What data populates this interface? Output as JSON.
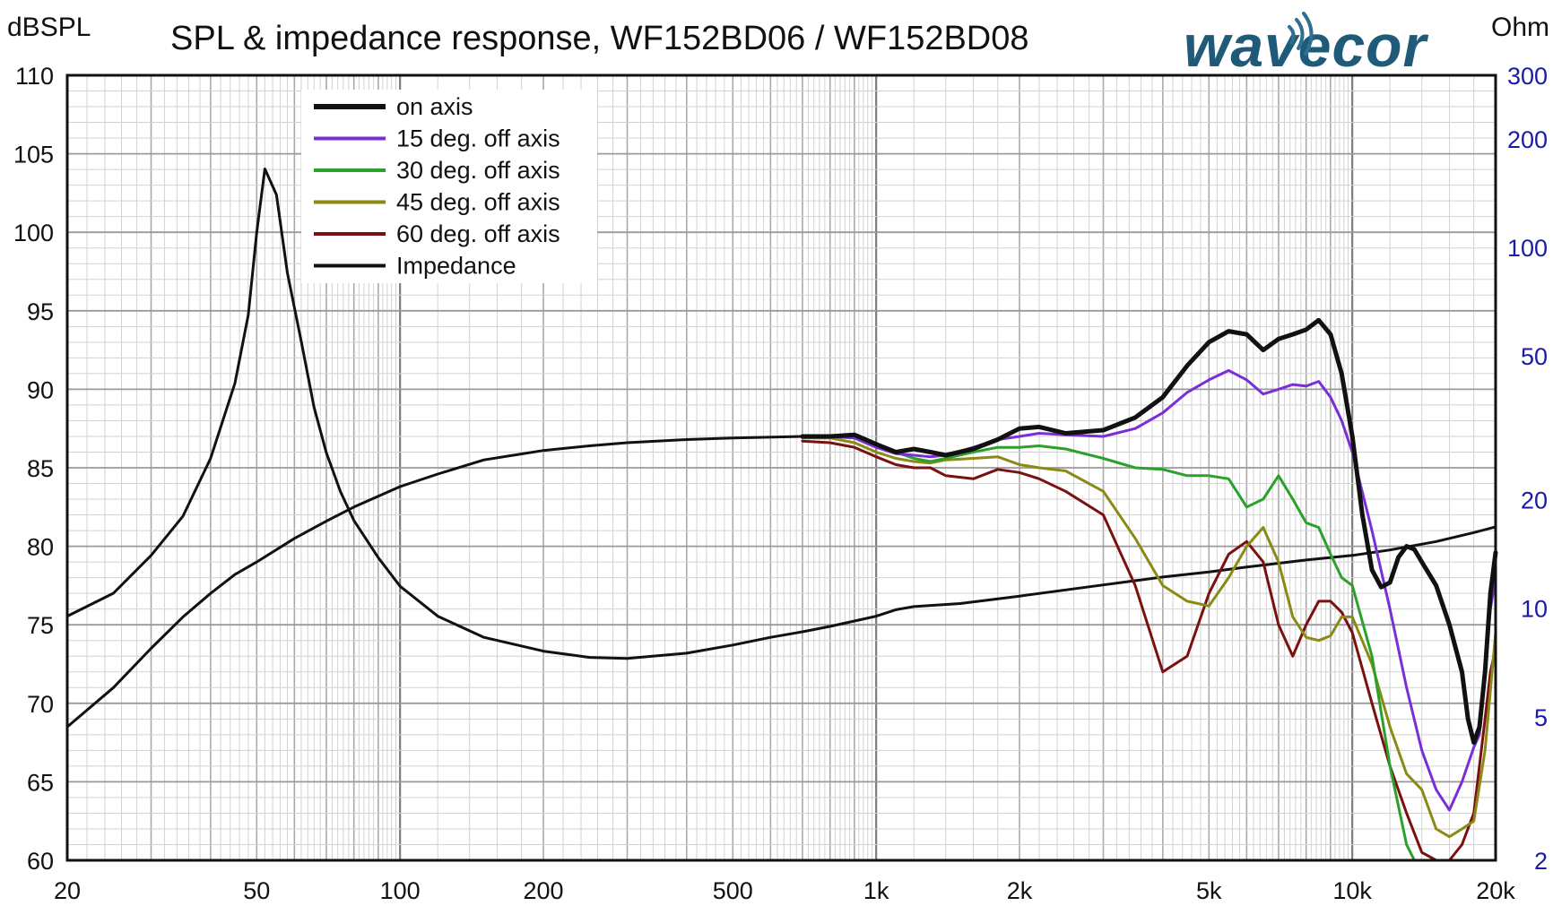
{
  "header": {
    "title": "SPL & impedance response, WF152BD06 / WF152BD08",
    "left_unit": "dBSPL",
    "right_unit": "Ohm",
    "logo": "wavecor"
  },
  "chart_data": {
    "type": "line",
    "title": "SPL & impedance response, WF152BD06 / WF152BD08",
    "xscale": "log",
    "xlim": [
      20,
      20000
    ],
    "x_ticks": [
      {
        "v": 20,
        "label": "20"
      },
      {
        "v": 50,
        "label": "50"
      },
      {
        "v": 100,
        "label": "100"
      },
      {
        "v": 200,
        "label": "200"
      },
      {
        "v": 500,
        "label": "500"
      },
      {
        "v": 1000,
        "label": "1k"
      },
      {
        "v": 2000,
        "label": "2k"
      },
      {
        "v": 5000,
        "label": "5k"
      },
      {
        "v": 10000,
        "label": "10k"
      },
      {
        "v": 20000,
        "label": "20k"
      }
    ],
    "ylabel": "dBSPL",
    "ylim": [
      60,
      110
    ],
    "y_ticks": [
      60,
      65,
      70,
      75,
      80,
      85,
      90,
      95,
      100,
      105,
      110
    ],
    "y2label": "Ohm",
    "y2scale": "log",
    "y2lim": [
      2,
      300
    ],
    "y2_ticks": [
      2,
      5,
      10,
      20,
      50,
      100,
      200,
      300
    ],
    "grid": true,
    "legend_position": "top-left",
    "series": [
      {
        "name": "on axis",
        "color": "#111111",
        "width": 5,
        "axis": "left",
        "points": [
          [
            700,
            87
          ],
          [
            800,
            87
          ],
          [
            900,
            87.1
          ],
          [
            1000,
            86.5
          ],
          [
            1100,
            86
          ],
          [
            1200,
            86.2
          ],
          [
            1300,
            86
          ],
          [
            1400,
            85.8
          ],
          [
            1600,
            86.2
          ],
          [
            1800,
            86.8
          ],
          [
            2000,
            87.5
          ],
          [
            2200,
            87.6
          ],
          [
            2500,
            87.2
          ],
          [
            3000,
            87.4
          ],
          [
            3500,
            88.2
          ],
          [
            4000,
            89.5
          ],
          [
            4500,
            91.5
          ],
          [
            5000,
            93
          ],
          [
            5500,
            93.7
          ],
          [
            6000,
            93.5
          ],
          [
            6500,
            92.5
          ],
          [
            7000,
            93.2
          ],
          [
            7500,
            93.5
          ],
          [
            8000,
            93.8
          ],
          [
            8500,
            94.4
          ],
          [
            9000,
            93.5
          ],
          [
            9500,
            91
          ],
          [
            10000,
            87
          ],
          [
            10500,
            82
          ],
          [
            11000,
            78.5
          ],
          [
            11500,
            77.4
          ],
          [
            12000,
            77.7
          ],
          [
            12500,
            79.3
          ],
          [
            13000,
            80
          ],
          [
            13500,
            79.8
          ],
          [
            14000,
            79
          ],
          [
            15000,
            77.5
          ],
          [
            16000,
            75
          ],
          [
            17000,
            72
          ],
          [
            17500,
            69
          ],
          [
            18000,
            67.5
          ],
          [
            18500,
            68.5
          ],
          [
            19000,
            72
          ],
          [
            19500,
            77
          ],
          [
            20000,
            79.6
          ]
        ]
      },
      {
        "name": "15 deg. off axis",
        "color": "#7a2ed8",
        "width": 3,
        "axis": "left",
        "points": [
          [
            700,
            87
          ],
          [
            800,
            87
          ],
          [
            900,
            86.9
          ],
          [
            1000,
            86.3
          ],
          [
            1100,
            85.9
          ],
          [
            1200,
            85.8
          ],
          [
            1300,
            85.7
          ],
          [
            1400,
            85.8
          ],
          [
            1600,
            86.3
          ],
          [
            1800,
            86.8
          ],
          [
            2000,
            87
          ],
          [
            2200,
            87.2
          ],
          [
            2500,
            87.1
          ],
          [
            3000,
            87
          ],
          [
            3500,
            87.5
          ],
          [
            4000,
            88.5
          ],
          [
            4500,
            89.8
          ],
          [
            5000,
            90.6
          ],
          [
            5500,
            91.2
          ],
          [
            6000,
            90.6
          ],
          [
            6500,
            89.7
          ],
          [
            7000,
            90
          ],
          [
            7500,
            90.3
          ],
          [
            8000,
            90.2
          ],
          [
            8500,
            90.5
          ],
          [
            9000,
            89.5
          ],
          [
            9500,
            88
          ],
          [
            10000,
            86
          ],
          [
            11000,
            81
          ],
          [
            12000,
            76
          ],
          [
            13000,
            71
          ],
          [
            14000,
            67
          ],
          [
            15000,
            64.5
          ],
          [
            16000,
            63.2
          ],
          [
            17000,
            65
          ],
          [
            18000,
            67.2
          ],
          [
            18500,
            68
          ],
          [
            19000,
            72
          ],
          [
            19500,
            76
          ],
          [
            20000,
            78
          ]
        ]
      },
      {
        "name": "30 deg. off axis",
        "color": "#2aa12a",
        "width": 3,
        "axis": "left",
        "points": [
          [
            700,
            87
          ],
          [
            800,
            87
          ],
          [
            900,
            86.9
          ],
          [
            1000,
            86.4
          ],
          [
            1100,
            86
          ],
          [
            1200,
            85.6
          ],
          [
            1300,
            85.4
          ],
          [
            1400,
            85.6
          ],
          [
            1600,
            86
          ],
          [
            1800,
            86.3
          ],
          [
            2000,
            86.3
          ],
          [
            2200,
            86.4
          ],
          [
            2500,
            86.2
          ],
          [
            3000,
            85.6
          ],
          [
            3500,
            85
          ],
          [
            4000,
            84.9
          ],
          [
            4500,
            84.5
          ],
          [
            5000,
            84.5
          ],
          [
            5500,
            84.3
          ],
          [
            6000,
            82.5
          ],
          [
            6500,
            83
          ],
          [
            7000,
            84.5
          ],
          [
            7500,
            83
          ],
          [
            8000,
            81.5
          ],
          [
            8500,
            81.2
          ],
          [
            9000,
            79.5
          ],
          [
            9500,
            78
          ],
          [
            10000,
            77.5
          ],
          [
            11000,
            73
          ],
          [
            12000,
            66
          ],
          [
            13000,
            61
          ],
          [
            13500,
            59.5
          ]
        ]
      },
      {
        "name": "45 deg. off axis",
        "color": "#8a8a14",
        "width": 3,
        "axis": "left",
        "points": [
          [
            700,
            86.9
          ],
          [
            800,
            86.9
          ],
          [
            900,
            86.6
          ],
          [
            1000,
            86
          ],
          [
            1100,
            85.6
          ],
          [
            1200,
            85.4
          ],
          [
            1300,
            85.3
          ],
          [
            1400,
            85.5
          ],
          [
            1600,
            85.6
          ],
          [
            1800,
            85.7
          ],
          [
            2000,
            85.2
          ],
          [
            2200,
            85
          ],
          [
            2500,
            84.8
          ],
          [
            3000,
            83.5
          ],
          [
            3500,
            80.5
          ],
          [
            4000,
            77.5
          ],
          [
            4500,
            76.5
          ],
          [
            5000,
            76.2
          ],
          [
            5500,
            78
          ],
          [
            6000,
            80
          ],
          [
            6500,
            81.2
          ],
          [
            7000,
            79
          ],
          [
            7500,
            75.5
          ],
          [
            8000,
            74.2
          ],
          [
            8500,
            74
          ],
          [
            9000,
            74.3
          ],
          [
            9500,
            75.5
          ],
          [
            10000,
            75.5
          ],
          [
            11000,
            72.5
          ],
          [
            12000,
            68.5
          ],
          [
            13000,
            65.5
          ],
          [
            14000,
            64.5
          ],
          [
            15000,
            62
          ],
          [
            16000,
            61.5
          ],
          [
            17000,
            62
          ],
          [
            18000,
            62.5
          ],
          [
            19000,
            67
          ],
          [
            20000,
            74.5
          ]
        ]
      },
      {
        "name": "60 deg. off axis",
        "color": "#7a1010",
        "width": 3,
        "axis": "left",
        "points": [
          [
            700,
            86.7
          ],
          [
            800,
            86.6
          ],
          [
            900,
            86.3
          ],
          [
            1000,
            85.7
          ],
          [
            1100,
            85.2
          ],
          [
            1200,
            85
          ],
          [
            1300,
            85
          ],
          [
            1400,
            84.5
          ],
          [
            1600,
            84.3
          ],
          [
            1800,
            84.9
          ],
          [
            2000,
            84.7
          ],
          [
            2200,
            84.3
          ],
          [
            2500,
            83.5
          ],
          [
            3000,
            82
          ],
          [
            3500,
            77.5
          ],
          [
            4000,
            72
          ],
          [
            4500,
            73
          ],
          [
            5000,
            77
          ],
          [
            5500,
            79.5
          ],
          [
            6000,
            80.3
          ],
          [
            6500,
            79
          ],
          [
            7000,
            75
          ],
          [
            7500,
            73
          ],
          [
            8000,
            75
          ],
          [
            8500,
            76.5
          ],
          [
            9000,
            76.5
          ],
          [
            9500,
            75.8
          ],
          [
            10000,
            74.5
          ],
          [
            11000,
            70
          ],
          [
            12000,
            66
          ],
          [
            13000,
            63
          ],
          [
            14000,
            60.5
          ],
          [
            15000,
            59.5
          ],
          [
            16000,
            59.8
          ],
          [
            17000,
            61
          ],
          [
            18000,
            63
          ],
          [
            19000,
            69
          ],
          [
            19500,
            72
          ],
          [
            20000,
            73.5
          ]
        ]
      },
      {
        "name": "Impedance",
        "color": "#111111",
        "width": 3,
        "axis": "right",
        "points": [
          [
            20,
            9.5
          ],
          [
            25,
            11
          ],
          [
            30,
            14
          ],
          [
            35,
            18
          ],
          [
            40,
            26
          ],
          [
            45,
            42
          ],
          [
            48,
            65
          ],
          [
            50,
            110
          ],
          [
            52,
            165
          ],
          [
            55,
            140
          ],
          [
            58,
            85
          ],
          [
            62,
            55
          ],
          [
            66,
            36
          ],
          [
            70,
            27
          ],
          [
            75,
            21
          ],
          [
            80,
            17.5
          ],
          [
            90,
            13.8
          ],
          [
            100,
            11.5
          ],
          [
            120,
            9.5
          ],
          [
            150,
            8.3
          ],
          [
            200,
            7.6
          ],
          [
            250,
            7.3
          ],
          [
            300,
            7.25
          ],
          [
            400,
            7.5
          ],
          [
            500,
            7.9
          ],
          [
            600,
            8.3
          ],
          [
            700,
            8.6
          ],
          [
            800,
            8.9
          ],
          [
            1000,
            9.5
          ],
          [
            1100,
            9.9
          ],
          [
            1200,
            10.1
          ],
          [
            1500,
            10.3
          ],
          [
            2000,
            10.8
          ],
          [
            3000,
            11.6
          ],
          [
            4000,
            12.2
          ],
          [
            5000,
            12.6
          ],
          [
            6000,
            13
          ],
          [
            8000,
            13.6
          ],
          [
            10000,
            14
          ],
          [
            12000,
            14.5
          ],
          [
            15000,
            15.3
          ],
          [
            18000,
            16.2
          ],
          [
            20000,
            16.8
          ]
        ]
      },
      {
        "name": "Impedance",
        "color": "#111111",
        "width": 3,
        "axis": "left",
        "legend": false,
        "points": [
          [
            20,
            68.5
          ],
          [
            25,
            71
          ],
          [
            30,
            73.5
          ],
          [
            35,
            75.5
          ],
          [
            40,
            77
          ],
          [
            45,
            78.2
          ],
          [
            50,
            79
          ],
          [
            60,
            80.5
          ],
          [
            70,
            81.6
          ],
          [
            80,
            82.5
          ],
          [
            100,
            83.8
          ],
          [
            120,
            84.6
          ],
          [
            150,
            85.5
          ],
          [
            200,
            86.1
          ],
          [
            250,
            86.4
          ],
          [
            300,
            86.6
          ],
          [
            400,
            86.8
          ],
          [
            500,
            86.9
          ],
          [
            700,
            87
          ]
        ]
      }
    ]
  }
}
